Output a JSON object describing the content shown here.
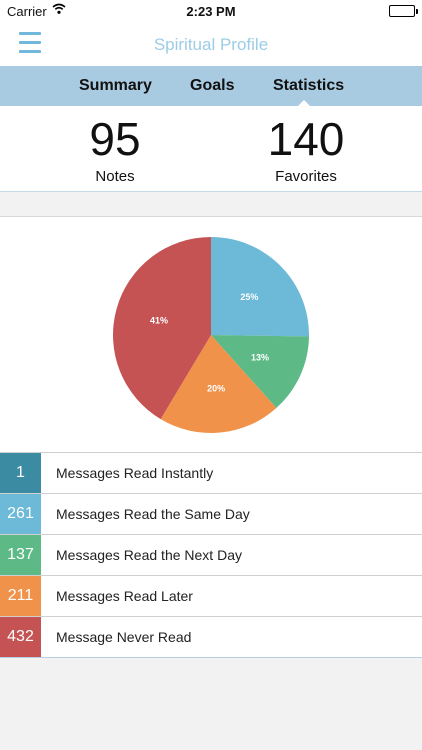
{
  "status_bar": {
    "carrier": "Carrier",
    "time": "2:23 PM"
  },
  "nav": {
    "title": "Spiritual Profile",
    "menu_icon": "hamburger-menu-icon"
  },
  "tabs": [
    {
      "label": "Summary",
      "active": false
    },
    {
      "label": "Goals",
      "active": false
    },
    {
      "label": "Statistics",
      "active": true
    }
  ],
  "stats": {
    "notes": {
      "value": "95",
      "label": "Notes"
    },
    "favorites": {
      "value": "140",
      "label": "Favorites"
    }
  },
  "colors": {
    "accent": "#72b8dc",
    "tab_bar": "#a9cbe1"
  },
  "chart_data": {
    "type": "pie",
    "slices": [
      {
        "label": "25%",
        "value": 25,
        "color": "#6cb9d8"
      },
      {
        "label": "13%",
        "value": 13,
        "color": "#5dba87"
      },
      {
        "label": "20%",
        "value": 20,
        "color": "#f0924a"
      },
      {
        "label": "41%",
        "value": 41,
        "color": "#c55354"
      }
    ]
  },
  "legend": [
    {
      "count": "1",
      "label": "Messages Read Instantly",
      "color": "#3b8ba3"
    },
    {
      "count": "261",
      "label": "Messages Read the Same Day",
      "color": "#6cb9d8"
    },
    {
      "count": "137",
      "label": "Messages Read the Next Day",
      "color": "#5dba87"
    },
    {
      "count": "211",
      "label": "Messages Read Later",
      "color": "#f0924a"
    },
    {
      "count": "432",
      "label": "Message Never Read",
      "color": "#c55354"
    }
  ]
}
